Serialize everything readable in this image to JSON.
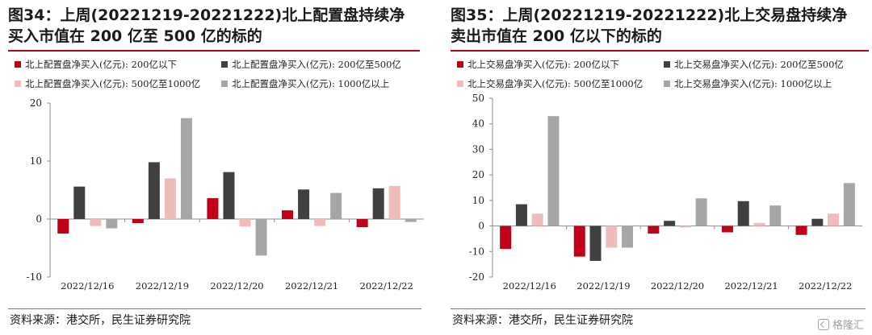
{
  "panels": [
    {
      "title": "图34：上周(20221219-20221222)北上配置盘持续净买入市值在 200 亿至 500 亿的标的",
      "source": "资料来源：港交所，民生证券研究院",
      "chart_data": {
        "type": "bar",
        "categories": [
          "2022/12/16",
          "2022/12/19",
          "2022/12/20",
          "2022/12/21",
          "2022/12/22"
        ],
        "series": [
          {
            "name": "北上配置盘净买入(亿元): 200亿以下",
            "color": "#c00018",
            "values": [
              -2.5,
              -0.7,
              3.6,
              1.5,
              -1.4
            ]
          },
          {
            "name": "北上配置盘净买入(亿元): 200亿至500亿",
            "color": "#404040",
            "values": [
              5.6,
              9.8,
              8.1,
              5.1,
              5.3
            ]
          },
          {
            "name": "北上配置盘净买入(亿元): 500亿至1000亿",
            "color": "#efbcbc",
            "values": [
              -1.2,
              7.0,
              -1.3,
              -1.2,
              5.7
            ]
          },
          {
            "name": "北上配置盘净买入(亿元): 1000亿以上",
            "color": "#a6a6a6",
            "values": [
              -1.6,
              17.4,
              -6.3,
              4.5,
              -0.5
            ]
          }
        ],
        "yticks": [
          20,
          10,
          0,
          -10
        ],
        "ylim": [
          -10,
          20
        ],
        "legend_position": "top"
      }
    },
    {
      "title": "图35：上周(20221219-20221222)北上交易盘持续净卖出市值在 200 亿以下的标的",
      "source": "资料来源：港交所，民生证券研究院",
      "chart_data": {
        "type": "bar",
        "categories": [
          "2022/12/16",
          "2022/12/19",
          "2022/12/20",
          "2022/12/21",
          "2022/12/22"
        ],
        "series": [
          {
            "name": "北上交易盘净买入(亿元): 200亿以下",
            "color": "#c00018",
            "values": [
              -9.0,
              -12.0,
              -3.0,
              -2.5,
              -3.5
            ]
          },
          {
            "name": "北上交易盘净买入(亿元): 200亿至500亿",
            "color": "#404040",
            "values": [
              8.5,
              -13.7,
              2.0,
              9.7,
              2.8
            ]
          },
          {
            "name": "北上交易盘净买入(亿元): 500亿至1000亿",
            "color": "#efbcbc",
            "values": [
              4.8,
              -8.5,
              -0.6,
              1.2,
              4.8
            ]
          },
          {
            "name": "北上交易盘净买入(亿元): 1000亿以上",
            "color": "#a6a6a6",
            "values": [
              43.0,
              -8.5,
              10.8,
              8.0,
              16.8
            ]
          }
        ],
        "yticks": [
          50,
          40,
          30,
          20,
          10,
          0,
          -10,
          -20
        ],
        "ylim": [
          -20,
          50
        ],
        "legend_position": "top"
      }
    }
  ],
  "watermark": "格隆汇"
}
